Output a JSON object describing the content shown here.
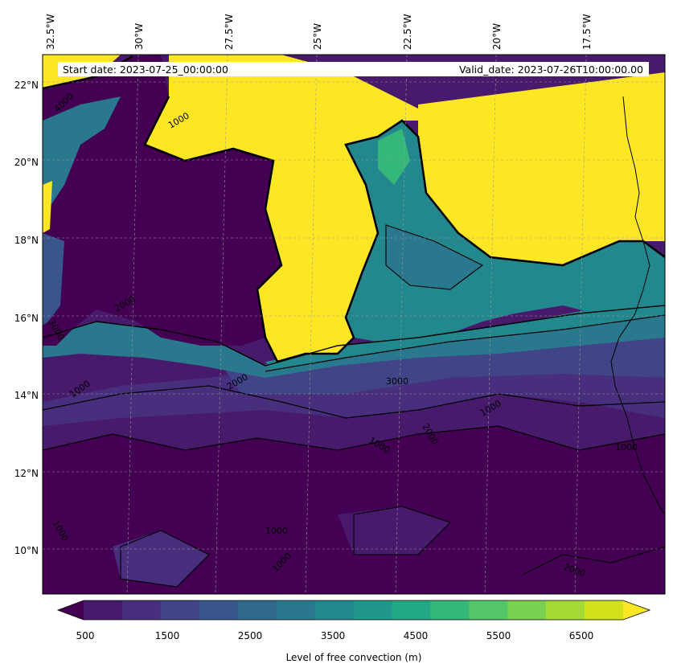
{
  "map": {
    "header": {
      "start_date": "Start date: 2023-07-25_00:00:00",
      "valid_date": "Valid_date: 2023-07-26T10:00:00.00"
    },
    "lon_labels": [
      "32.5°W",
      "30°W",
      "27.5°W",
      "25°W",
      "22.5°W",
      "20°W",
      "17.5°W"
    ],
    "lat_labels": [
      "22°N",
      "20°N",
      "18°N",
      "16°N",
      "14°N",
      "12°N",
      "10°N"
    ],
    "contour_labels": [
      "4000",
      "1000",
      "3000",
      "2000",
      "1000",
      "3000",
      "2000",
      "1000",
      "1000",
      "2000",
      "1000",
      "1000",
      "1000",
      "2000",
      "1000"
    ],
    "colorbar": {
      "title": "Level of free convection (m)",
      "tick_labels": [
        "500",
        "1500",
        "2500",
        "3500",
        "4500",
        "5500",
        "6500"
      ],
      "colors": [
        "#440154",
        "#481a6c",
        "#472f7d",
        "#414487",
        "#39568c",
        "#31688e",
        "#2a788e",
        "#23888e",
        "#1f988b",
        "#22a884",
        "#35b779",
        "#54c568",
        "#7ad151",
        "#a5db36",
        "#d2e21b",
        "#fde725"
      ]
    }
  }
}
